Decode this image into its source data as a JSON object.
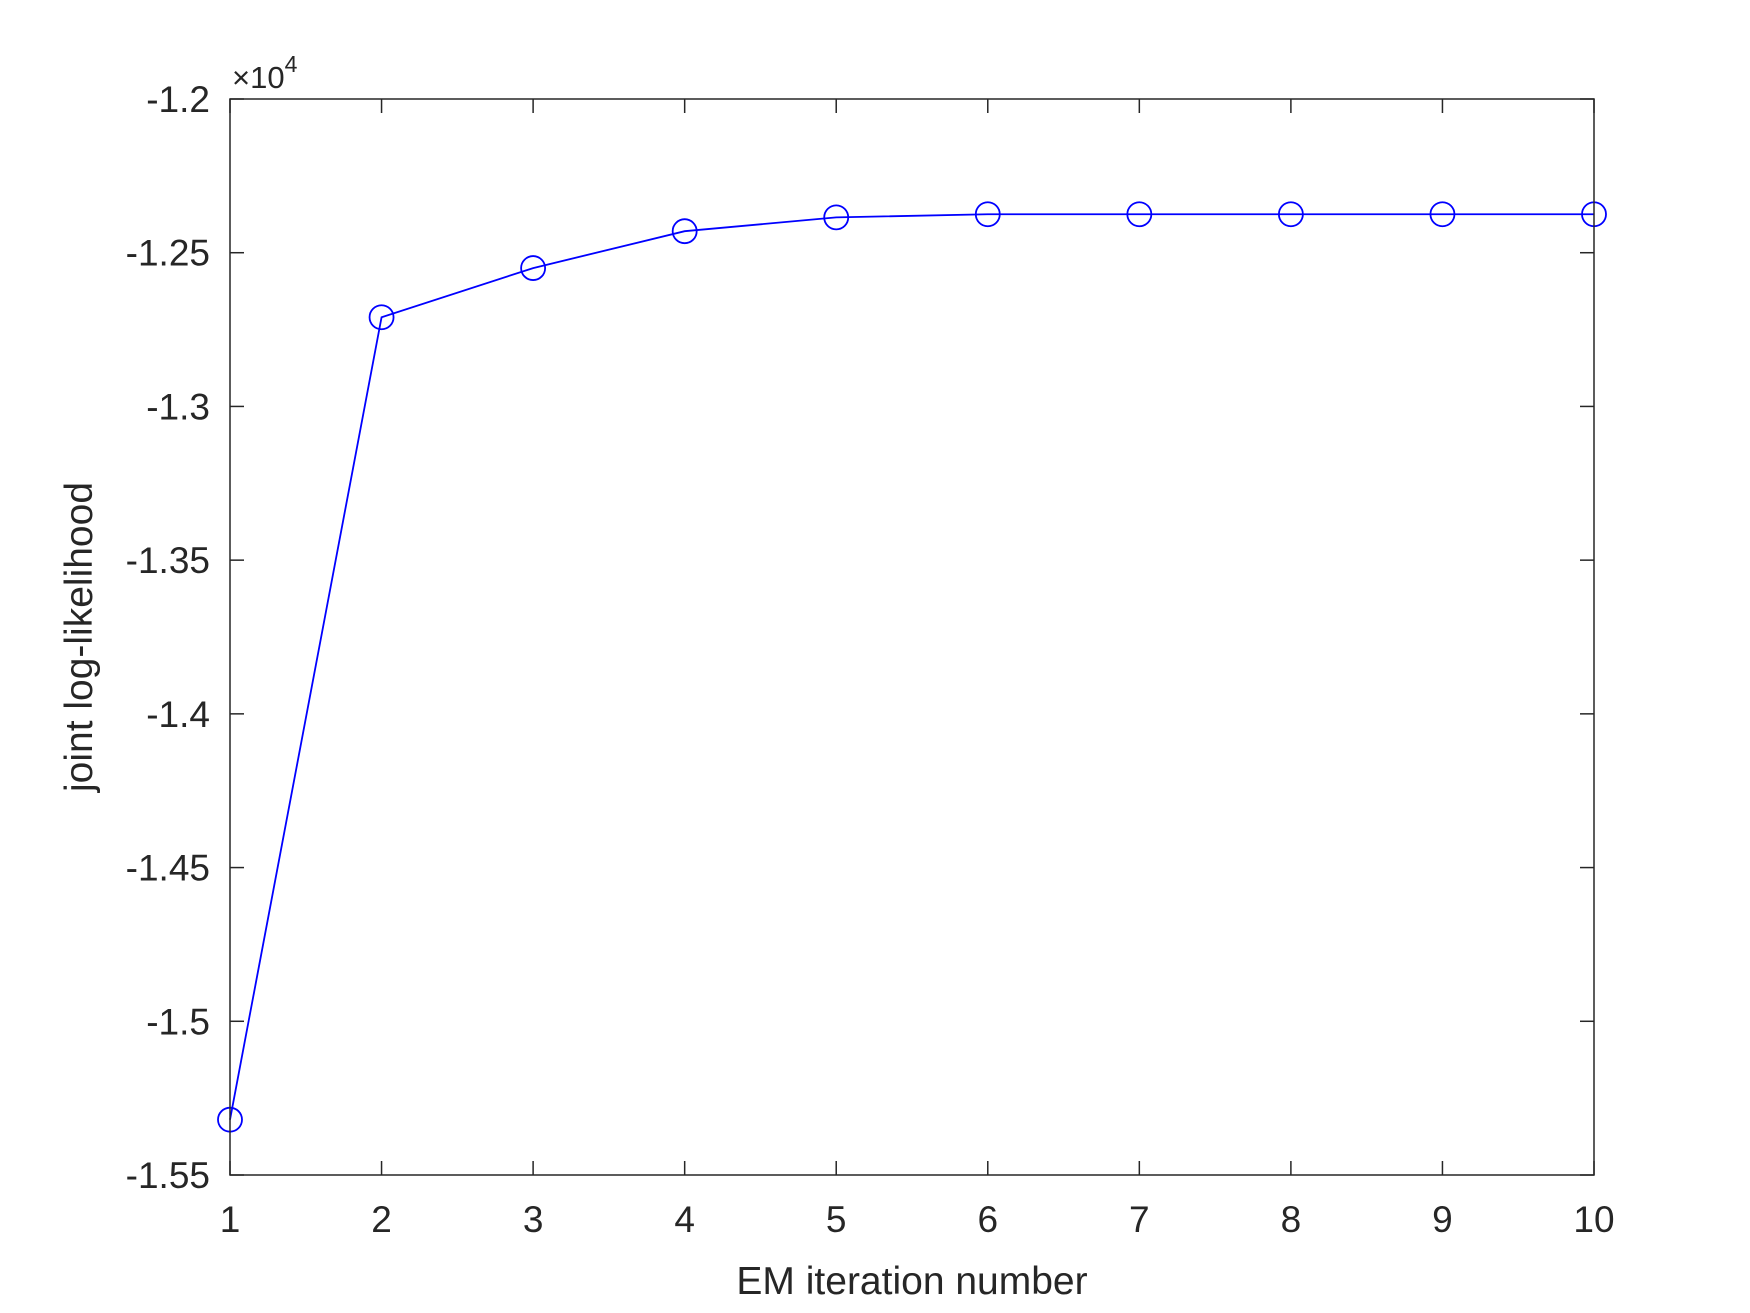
{
  "chart_data": {
    "type": "line",
    "title": "",
    "xlabel": "EM iteration number",
    "ylabel": "joint log-likelihood",
    "y_exponent_label": "×10",
    "y_exponent_power": "4",
    "xlim": [
      1,
      10
    ],
    "ylim": [
      -1.55,
      -1.2
    ],
    "x_ticks": [
      1,
      2,
      3,
      4,
      5,
      6,
      7,
      8,
      9,
      10
    ],
    "x_tick_labels": [
      "1",
      "2",
      "3",
      "4",
      "5",
      "6",
      "7",
      "8",
      "9",
      "10"
    ],
    "y_ticks": [
      -1.55,
      -1.5,
      -1.45,
      -1.4,
      -1.35,
      -1.3,
      -1.25,
      -1.2
    ],
    "y_tick_labels": [
      "-1.55",
      "-1.5",
      "-1.45",
      "-1.4",
      "-1.35",
      "-1.3",
      "-1.25",
      "-1.2"
    ],
    "grid": false,
    "series": [
      {
        "color": "#0000ff",
        "marker": "circle",
        "x": [
          1,
          2,
          3,
          4,
          5,
          6,
          7,
          8,
          9,
          10
        ],
        "y": [
          -1.532,
          -1.271,
          -1.255,
          -1.243,
          -1.2385,
          -1.2375,
          -1.2375,
          -1.2375,
          -1.2375,
          -1.2375
        ]
      }
    ]
  }
}
